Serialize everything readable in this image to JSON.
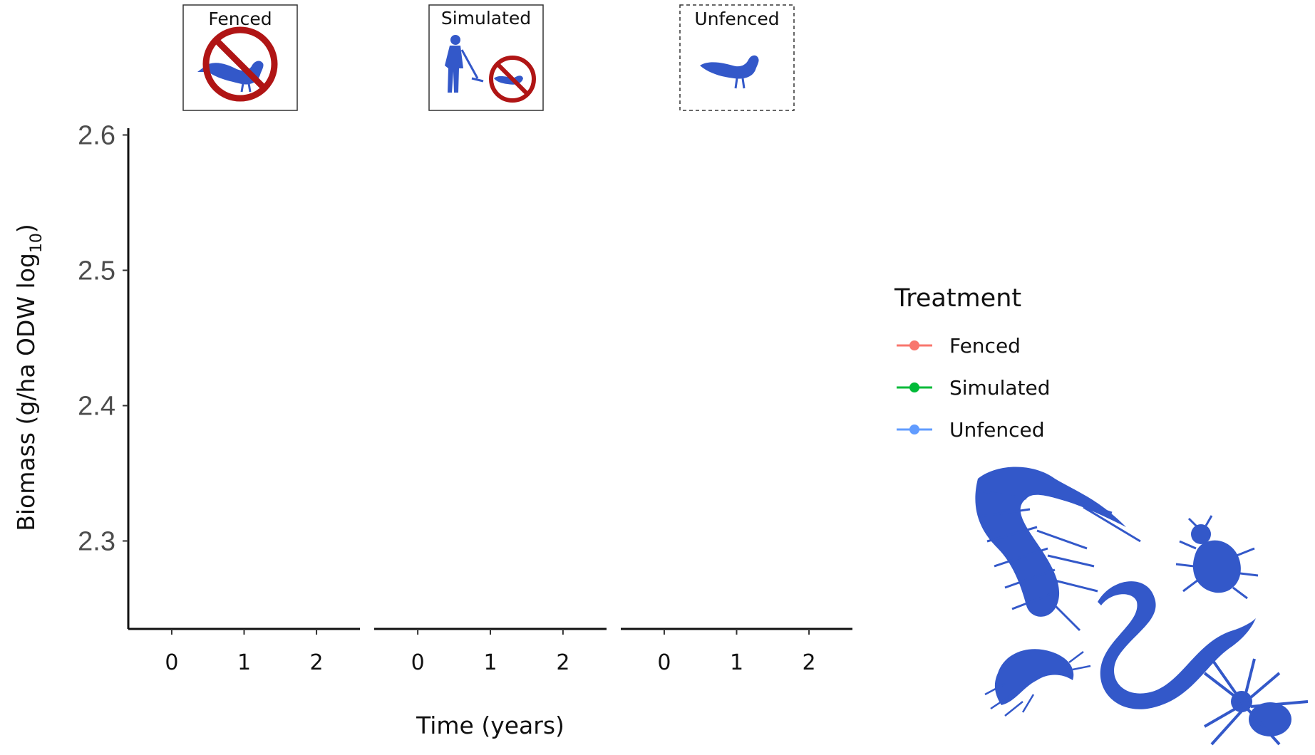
{
  "chart_data": {
    "type": "line",
    "title": "",
    "ylabel": "Biomass (g/ha ODW log",
    "ylabel_subscript": "10",
    "ylabel_suffix": ")",
    "xlabel": "Time (years)",
    "ylim": [
      2.235,
      2.605
    ],
    "yticks": [
      2.6,
      2.5,
      2.4,
      2.3
    ],
    "ytick_labels": [
      "2.6",
      "2.5",
      "2.4",
      "2.3"
    ],
    "facets": [
      {
        "label": "Fenced",
        "x": [
          0,
          1,
          2
        ],
        "xtick_labels": [
          "0",
          "1",
          "2"
        ]
      },
      {
        "label": "Simulated",
        "x": [
          0,
          1,
          2
        ],
        "xtick_labels": [
          "0",
          "1",
          "2"
        ]
      },
      {
        "label": "Unfenced",
        "x": [
          0,
          1,
          2
        ],
        "xtick_labels": [
          "0",
          "1",
          "2"
        ]
      }
    ],
    "series": [
      {
        "name": "Fenced",
        "color": "#f8766d",
        "values": []
      },
      {
        "name": "Simulated",
        "color": "#00ba38",
        "values": []
      },
      {
        "name": "Unfenced",
        "color": "#619cff",
        "values": []
      }
    ],
    "legend": {
      "title": "Treatment",
      "position": "right"
    },
    "grid": false
  },
  "icons": {
    "fenced": "pheasant-prohibited-icon",
    "simulated": "person-raking-and-pheasant-prohibited-icon",
    "unfenced": "pheasant-icon",
    "invertebrates": "invertebrate-silhouettes-icon",
    "silhouette_color": "#3358c9",
    "prohibit_color": "#b01515"
  }
}
